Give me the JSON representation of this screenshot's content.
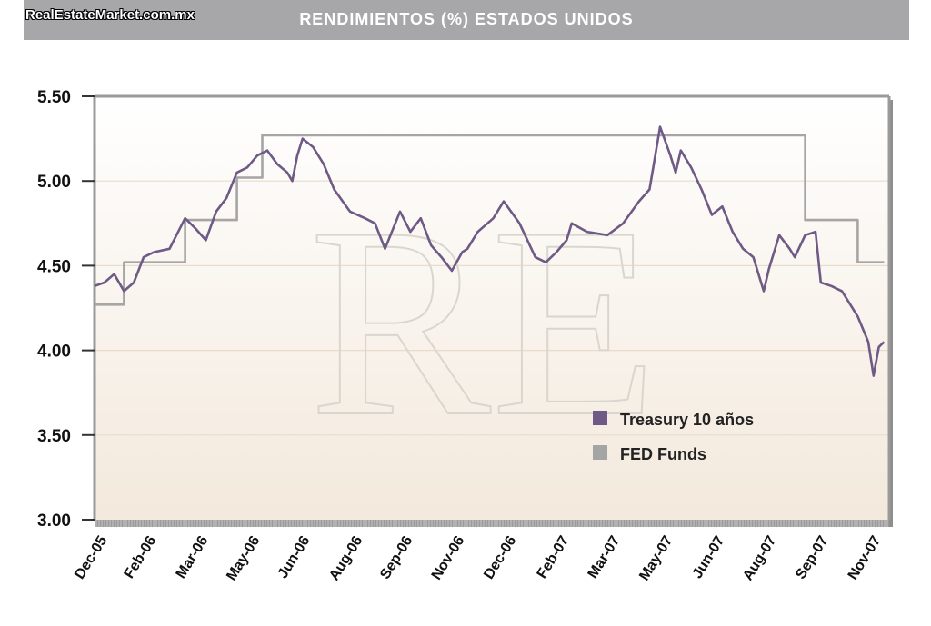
{
  "header": {
    "title": "RENDIMIENTOS (%) ESTADOS UNIDOS",
    "brand": "RealEstateMarket.com.mx",
    "watermark": "RE"
  },
  "colors": {
    "treasury": "#6e5a84",
    "fed": "#a5a5a5",
    "banner": "#a7a7a9",
    "frame": "#9a9a9a"
  },
  "chart_data": {
    "type": "line",
    "title": "RENDIMIENTOS (%) ESTADOS UNIDOS",
    "xlabel": "",
    "ylabel": "",
    "ylim": [
      3.0,
      5.5
    ],
    "yticks": [
      "5.50",
      "5.00",
      "4.50",
      "4.00",
      "3.50",
      "3.00"
    ],
    "categories": [
      "Dec-05",
      "Feb-06",
      "Mar-06",
      "May-06",
      "Jun-06",
      "Aug-06",
      "Sep-06",
      "Nov-06",
      "Dec-06",
      "Feb-07",
      "Mar-07",
      "May-07",
      "Jun-07",
      "Aug-07",
      "Sep-07",
      "Nov-07"
    ],
    "grid": true,
    "legend_position": "lower-right",
    "series": [
      {
        "name": "Treasury 10 años",
        "x": [
          0.0,
          0.2,
          0.4,
          0.6,
          0.8,
          1.0,
          1.2,
          1.5,
          1.8,
          2.0,
          2.2,
          2.4,
          2.6,
          2.8,
          3.0,
          3.2,
          3.4,
          3.6,
          3.8,
          3.9,
          4.0,
          4.1,
          4.3,
          4.5,
          4.7,
          5.0,
          5.3,
          5.5,
          5.7,
          6.0,
          6.2,
          6.4,
          6.6,
          6.8,
          7.0,
          7.2,
          7.3,
          7.5,
          7.8,
          8.0,
          8.3,
          8.6,
          8.8,
          9.0,
          9.2,
          9.3,
          9.6,
          10.0,
          10.3,
          10.6,
          10.8,
          11.0,
          11.2,
          11.3,
          11.4,
          11.6,
          11.8,
          12.0,
          12.2,
          12.4,
          12.6,
          12.8,
          13.0,
          13.1,
          13.3,
          13.5,
          13.6,
          13.8,
          14.0,
          14.1,
          14.3,
          14.5,
          14.6,
          14.8,
          15.0,
          15.1,
          15.2,
          15.3
        ],
        "values": [
          4.38,
          4.4,
          4.45,
          4.35,
          4.4,
          4.55,
          4.58,
          4.6,
          4.78,
          4.72,
          4.65,
          4.82,
          4.9,
          5.05,
          5.08,
          5.15,
          5.18,
          5.1,
          5.05,
          5.0,
          5.15,
          5.25,
          5.2,
          5.1,
          4.95,
          4.82,
          4.78,
          4.75,
          4.6,
          4.82,
          4.7,
          4.78,
          4.62,
          4.55,
          4.47,
          4.58,
          4.6,
          4.7,
          4.78,
          4.88,
          4.75,
          4.55,
          4.52,
          4.58,
          4.65,
          4.75,
          4.7,
          4.68,
          4.75,
          4.88,
          4.95,
          5.32,
          5.15,
          5.05,
          5.18,
          5.08,
          4.95,
          4.8,
          4.85,
          4.7,
          4.6,
          4.55,
          4.35,
          4.48,
          4.68,
          4.6,
          4.55,
          4.68,
          4.7,
          4.4,
          4.38,
          4.35,
          4.3,
          4.2,
          4.05,
          3.85,
          4.02,
          4.05
        ]
      },
      {
        "name": "FED Funds",
        "x": [
          0.0,
          0.6,
          0.6,
          1.8,
          1.8,
          2.8,
          2.8,
          3.3,
          3.3,
          3.9,
          3.9,
          13.8,
          13.8,
          14.8,
          14.8,
          15.3
        ],
        "values": [
          4.27,
          4.27,
          4.52,
          4.52,
          4.77,
          4.77,
          5.02,
          5.02,
          5.27,
          5.27,
          5.27,
          5.27,
          4.77,
          4.77,
          4.52,
          4.52
        ]
      }
    ]
  }
}
